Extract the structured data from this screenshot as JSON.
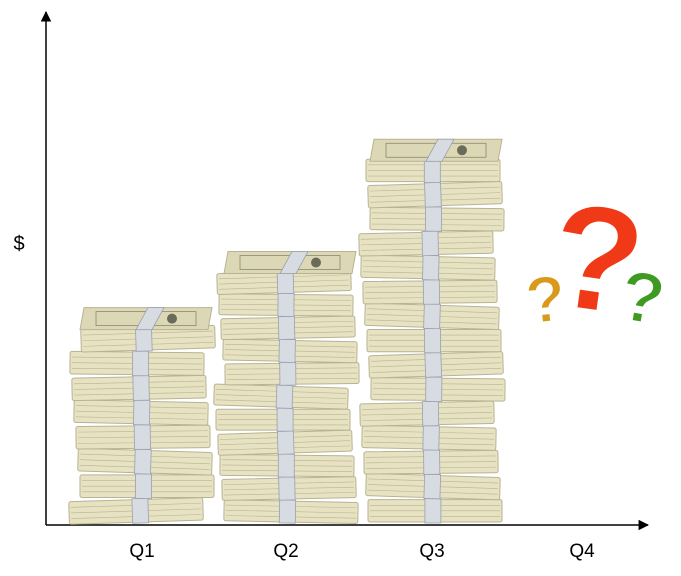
{
  "chart_data": {
    "type": "bar",
    "title": "",
    "xlabel": "",
    "ylabel": "$",
    "categories": [
      "Q1",
      "Q2",
      "Q3",
      "Q4"
    ],
    "values": [
      7,
      9,
      13,
      null
    ],
    "ylim": [
      0,
      18
    ],
    "grid": false,
    "legend": "none",
    "bar_style": "stacked-money-bundles",
    "unknown_marker": {
      "category": "Q4",
      "glyph": "?",
      "colors": [
        "#d99a1c",
        "#f03a17",
        "#3f9a22"
      ]
    },
    "colors": {
      "bill": "#e6e2c2",
      "bill_edge": "#b8b393",
      "band": "#d7dbe2",
      "ink": "#2b2b2b"
    }
  }
}
